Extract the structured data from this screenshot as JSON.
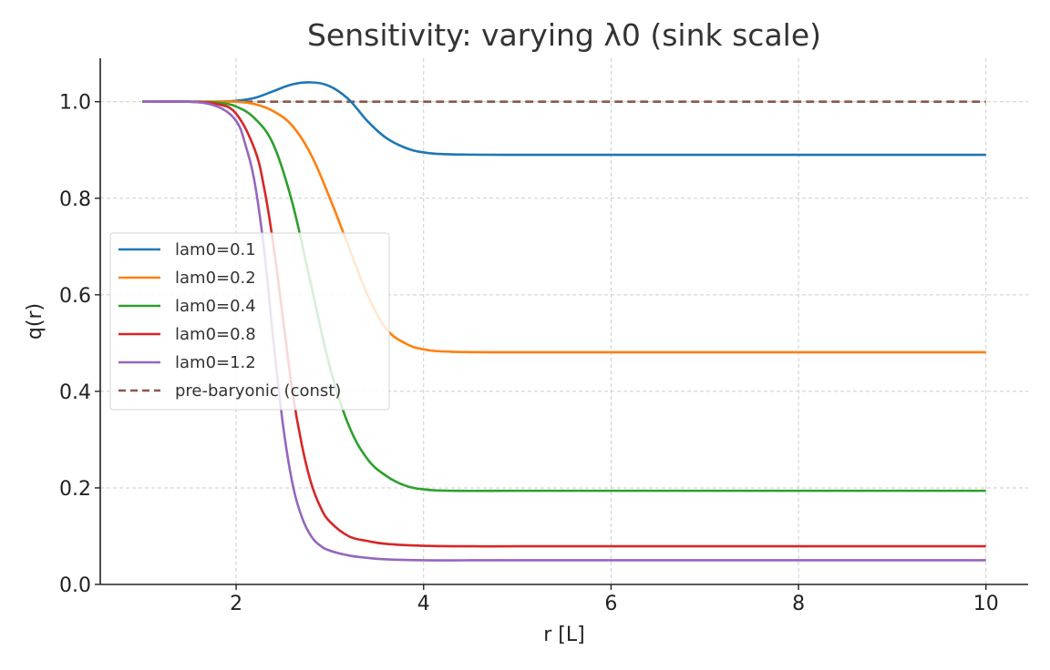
{
  "chart_data": {
    "type": "line",
    "title": "Sensitivity: varying λ0 (sink scale)",
    "xlabel": "r [L]",
    "ylabel": "q(r)",
    "xlim": [
      0.55,
      10.45
    ],
    "ylim": [
      0.0,
      1.09
    ],
    "xticks": [
      2,
      4,
      6,
      8,
      10
    ],
    "yticks": [
      0.0,
      0.2,
      0.4,
      0.6,
      0.8,
      1.0
    ],
    "xtick_labels": [
      "2",
      "4",
      "6",
      "8",
      "10"
    ],
    "ytick_labels": [
      "0.0",
      "0.2",
      "0.4",
      "0.6",
      "0.8",
      "1.0"
    ],
    "grid": true,
    "legend_position": "center-left",
    "series": [
      {
        "name": "lam0=0.1",
        "color": "#1f77b4",
        "style": "solid",
        "x": [
          1.0,
          1.5,
          1.8,
          2.0,
          2.2,
          2.4,
          2.6,
          2.8,
          3.0,
          3.2,
          3.4,
          3.6,
          3.8,
          4.0,
          4.3,
          5.0,
          6.0,
          7.0,
          8.0,
          9.0,
          10.0
        ],
        "y": [
          1.0,
          1.0,
          1.0,
          1.002,
          1.008,
          1.022,
          1.036,
          1.04,
          1.032,
          1.005,
          0.96,
          0.925,
          0.905,
          0.895,
          0.891,
          0.89,
          0.89,
          0.89,
          0.89,
          0.89,
          0.89
        ]
      },
      {
        "name": "lam0=0.2",
        "color": "#ff7f0e",
        "style": "solid",
        "x": [
          1.0,
          1.5,
          1.8,
          2.0,
          2.2,
          2.4,
          2.6,
          2.8,
          3.0,
          3.2,
          3.4,
          3.6,
          3.8,
          4.0,
          4.3,
          5.0,
          6.0,
          7.0,
          8.0,
          9.0,
          10.0
        ],
        "y": [
          1.0,
          1.0,
          1.0,
          1.0,
          0.995,
          0.98,
          0.95,
          0.89,
          0.8,
          0.7,
          0.6,
          0.53,
          0.5,
          0.487,
          0.482,
          0.481,
          0.481,
          0.481,
          0.481,
          0.481,
          0.481
        ]
      },
      {
        "name": "lam0=0.4",
        "color": "#2ca02c",
        "style": "solid",
        "x": [
          1.0,
          1.5,
          1.8,
          2.0,
          2.2,
          2.4,
          2.6,
          2.8,
          3.0,
          3.2,
          3.4,
          3.6,
          3.8,
          4.0,
          4.3,
          5.0,
          6.0,
          7.0,
          8.0,
          9.0,
          10.0
        ],
        "y": [
          1.0,
          1.0,
          0.998,
          0.99,
          0.965,
          0.91,
          0.79,
          0.62,
          0.45,
          0.33,
          0.26,
          0.225,
          0.205,
          0.197,
          0.194,
          0.194,
          0.194,
          0.194,
          0.194,
          0.194,
          0.194
        ]
      },
      {
        "name": "lam0=0.8",
        "color": "#d62728",
        "style": "solid",
        "x": [
          1.0,
          1.5,
          1.8,
          2.0,
          2.2,
          2.3,
          2.4,
          2.5,
          2.6,
          2.7,
          2.8,
          2.9,
          3.0,
          3.2,
          3.4,
          3.6,
          4.0,
          4.5,
          5.0,
          6.0,
          8.0,
          10.0
        ],
        "y": [
          1.0,
          1.0,
          0.995,
          0.975,
          0.9,
          0.82,
          0.7,
          0.55,
          0.4,
          0.29,
          0.21,
          0.16,
          0.13,
          0.1,
          0.09,
          0.084,
          0.08,
          0.079,
          0.079,
          0.079,
          0.079,
          0.079
        ]
      },
      {
        "name": "lam0=1.2",
        "color": "#9467bd",
        "style": "solid",
        "x": [
          1.0,
          1.5,
          1.8,
          2.0,
          2.1,
          2.2,
          2.3,
          2.4,
          2.5,
          2.6,
          2.7,
          2.8,
          2.9,
          3.0,
          3.2,
          3.4,
          3.6,
          4.0,
          4.5,
          5.0,
          6.0,
          8.0,
          10.0
        ],
        "y": [
          1.0,
          1.0,
          0.99,
          0.96,
          0.91,
          0.83,
          0.69,
          0.5,
          0.33,
          0.21,
          0.14,
          0.1,
          0.08,
          0.07,
          0.06,
          0.055,
          0.052,
          0.05,
          0.05,
          0.05,
          0.05,
          0.05,
          0.05
        ]
      },
      {
        "name": "pre-baryonic (const)",
        "color": "#8c564b",
        "style": "dashed",
        "x": [
          1.0,
          10.0
        ],
        "y": [
          1.0,
          1.0
        ]
      }
    ]
  }
}
